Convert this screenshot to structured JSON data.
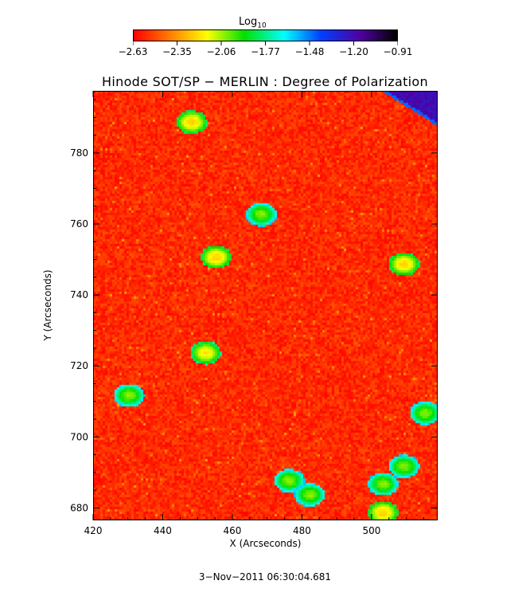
{
  "colorbar": {
    "title": "Log",
    "title_sub": "10",
    "ticks": [
      "−2.63",
      "−2.35",
      "−2.06",
      "−1.77",
      "−1.48",
      "−1.20",
      "−0.91"
    ],
    "range": [
      -2.63,
      -0.91
    ]
  },
  "chart_data": {
    "type": "heatmap",
    "title": "Hinode SOT/SP − MERLIN : Degree of Polarization",
    "xlabel": "X (Arcseconds)",
    "ylabel": "Y (Arcseconds)",
    "xlim": [
      420,
      519
    ],
    "ylim": [
      676.5,
      797.5
    ],
    "xticks": [
      420,
      440,
      460,
      480,
      500
    ],
    "yticks": [
      680,
      700,
      720,
      740,
      760,
      780
    ],
    "xtick_labels": [
      "420",
      "440",
      "460",
      "480",
      "500"
    ],
    "ytick_labels": [
      "680",
      "700",
      "720",
      "740",
      "760",
      "780"
    ],
    "value_range": [
      -2.63,
      -0.91
    ],
    "background_level": -2.55,
    "bright_features": [
      {
        "x": 468,
        "y": 763,
        "v": -2.0
      },
      {
        "x": 455,
        "y": 751,
        "v": -2.2
      },
      {
        "x": 452,
        "y": 724,
        "v": -2.15
      },
      {
        "x": 430,
        "y": 712,
        "v": -2.0
      },
      {
        "x": 448,
        "y": 789,
        "v": -2.2
      },
      {
        "x": 476,
        "y": 688,
        "v": -2.0
      },
      {
        "x": 482,
        "y": 684,
        "v": -2.0
      },
      {
        "x": 503,
        "y": 687,
        "v": -2.0
      },
      {
        "x": 509,
        "y": 692,
        "v": -2.0
      },
      {
        "x": 515,
        "y": 707,
        "v": -2.0
      },
      {
        "x": 509,
        "y": 749,
        "v": -2.2
      },
      {
        "x": 503,
        "y": 679,
        "v": -2.2
      }
    ],
    "limb_corner": {
      "location": "top-right",
      "v": -1.15
    }
  },
  "timestamp": "3−Nov−2011 06:30:04.681"
}
